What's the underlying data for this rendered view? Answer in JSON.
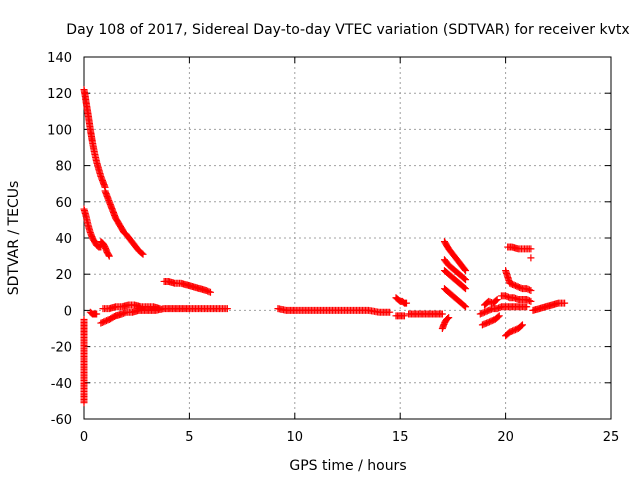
{
  "chart_data": {
    "type": "scatter",
    "title": "Day 108 of 2017, Sidereal Day-to-day VTEC variation (SDTVAR) for receiver kvtx",
    "xlabel": "GPS time / hours",
    "ylabel": "SDTVAR / TECUs",
    "xlim": [
      0,
      25
    ],
    "ylim": [
      -60,
      140
    ],
    "xticks": [
      0,
      5,
      10,
      15,
      20,
      25
    ],
    "yticks": [
      -60,
      -40,
      -20,
      0,
      20,
      40,
      60,
      80,
      100,
      120,
      140
    ],
    "xtick_labels": [
      "0",
      "5",
      "10",
      "15",
      "20",
      "25"
    ],
    "ytick_labels": [
      "-60",
      "-40",
      "-20",
      "0",
      "20",
      "40",
      "60",
      "80",
      "100",
      "120",
      "140"
    ],
    "grid": true,
    "marker": "+",
    "color": "#ff0000",
    "series": [
      {
        "name": "track-1",
        "x": [
          0.0,
          0.05,
          0.1,
          0.2,
          0.3,
          0.4,
          0.5,
          0.6,
          0.7,
          0.8,
          0.9,
          1.0
        ],
        "y": [
          122,
          119,
          115,
          108,
          100,
          93,
          87,
          82,
          78,
          74,
          71,
          68
        ]
      },
      {
        "name": "track-2",
        "x": [
          1.0,
          1.1,
          1.2,
          1.3,
          1.4,
          1.5,
          1.6,
          1.7,
          1.8,
          1.9,
          2.0,
          2.2,
          2.4,
          2.6,
          2.8
        ],
        "y": [
          66,
          63,
          60,
          57,
          54,
          51,
          49,
          47,
          45,
          43,
          42,
          39,
          36,
          33,
          31
        ]
      },
      {
        "name": "track-3",
        "x": [
          0.0,
          0.1,
          0.2,
          0.3,
          0.4,
          0.5,
          0.6,
          0.7,
          0.8
        ],
        "y": [
          56,
          52,
          47,
          43,
          40,
          38,
          36,
          35,
          35
        ]
      },
      {
        "name": "track-4",
        "x": [
          0.8,
          0.9,
          1.0,
          1.1,
          1.2
        ],
        "y": [
          38,
          37,
          35,
          32,
          30
        ]
      },
      {
        "name": "track-5",
        "x": [
          0.0,
          0.0,
          0.0
        ],
        "y": [
          -51,
          -15,
          -5
        ]
      },
      {
        "name": "track-6",
        "x": [
          0.3,
          0.4,
          0.5,
          0.6
        ],
        "y": [
          -1,
          -2,
          -2,
          -2
        ]
      },
      {
        "name": "track-7",
        "x": [
          0.8,
          1.0,
          1.2,
          1.5,
          1.8,
          2.0,
          2.3,
          2.6,
          3.0,
          3.4,
          3.8,
          4.2,
          4.6,
          5.0,
          5.5,
          6.0,
          6.5,
          6.8
        ],
        "y": [
          -7,
          -6,
          -5,
          -3,
          -2,
          -1,
          -1,
          0,
          0,
          0,
          1,
          1,
          1,
          1,
          1,
          1,
          1,
          1
        ]
      },
      {
        "name": "track-8",
        "x": [
          0.9,
          1.2,
          1.5,
          1.8,
          2.1,
          2.4,
          2.7,
          3.0,
          3.3,
          3.6
        ],
        "y": [
          1,
          1,
          2,
          2,
          3,
          3,
          2,
          2,
          2,
          1
        ]
      },
      {
        "name": "track-9",
        "x": [
          3.8,
          4.0,
          4.3,
          4.6,
          4.9,
          5.2,
          5.5,
          5.8,
          6.0
        ],
        "y": [
          16,
          16,
          15,
          15,
          14,
          13,
          12,
          11,
          10
        ]
      },
      {
        "name": "track-10",
        "x": [
          9.2,
          9.6,
          10.0,
          10.5,
          11.0,
          11.5,
          12.0,
          12.5,
          13.0,
          13.5,
          14.0,
          14.5
        ],
        "y": [
          1,
          0,
          0,
          0,
          0,
          0,
          0,
          0,
          0,
          0,
          -1,
          -1
        ]
      },
      {
        "name": "track-11",
        "x": [
          14.8,
          14.9,
          15.0,
          15.1,
          15.2,
          15.3
        ],
        "y": [
          7,
          6,
          5,
          5,
          4,
          4
        ]
      },
      {
        "name": "track-12",
        "x": [
          14.8,
          15.0,
          15.2
        ],
        "y": [
          -3,
          -3,
          -3
        ]
      },
      {
        "name": "track-13",
        "x": [
          15.4,
          15.8,
          16.2,
          16.6,
          17.0
        ],
        "y": [
          -2,
          -2,
          -2,
          -2,
          -2
        ]
      },
      {
        "name": "track-14",
        "x": [
          17.0,
          17.1,
          17.2,
          17.3
        ],
        "y": [
          -10,
          -7,
          -5,
          -4
        ]
      },
      {
        "name": "track-15",
        "x": [
          17.1,
          17.3,
          17.5,
          17.7,
          17.9,
          18.1
        ],
        "y": [
          38,
          34,
          31,
          28,
          25,
          22
        ]
      },
      {
        "name": "track-16",
        "x": [
          17.1,
          17.3,
          17.5,
          17.7,
          17.9,
          18.1
        ],
        "y": [
          28,
          25,
          23,
          21,
          19,
          17
        ]
      },
      {
        "name": "track-17",
        "x": [
          17.1,
          17.3,
          17.5,
          17.7,
          17.9,
          18.1
        ],
        "y": [
          22,
          20,
          18,
          16,
          14,
          12
        ]
      },
      {
        "name": "track-18",
        "x": [
          17.1,
          17.3,
          17.5,
          17.7,
          17.9,
          18.1
        ],
        "y": [
          12,
          10,
          8,
          6,
          4,
          2
        ]
      },
      {
        "name": "track-19",
        "x": [
          18.8,
          19.0,
          19.2,
          19.4,
          19.6,
          19.8,
          20.0,
          20.2,
          20.4,
          20.6,
          20.8,
          21.0
        ],
        "y": [
          -2,
          -1,
          0,
          1,
          1,
          2,
          2,
          2,
          2,
          2,
          2,
          2
        ]
      },
      {
        "name": "track-20",
        "x": [
          18.9,
          19.1,
          19.3,
          19.5,
          19.7
        ],
        "y": [
          -8,
          -7,
          -6,
          -5,
          -3
        ]
      },
      {
        "name": "track-21",
        "x": [
          19.0,
          19.2,
          19.4,
          19.6
        ],
        "y": [
          3,
          5,
          4,
          6
        ]
      },
      {
        "name": "track-22",
        "x": [
          19.8,
          20.0,
          20.2,
          20.4,
          20.6,
          20.8,
          21.0,
          21.2
        ],
        "y": [
          8,
          8,
          7,
          7,
          6,
          6,
          6,
          5
        ]
      },
      {
        "name": "track-23",
        "x": [
          20.0,
          20.2,
          20.4,
          20.6,
          20.8
        ],
        "y": [
          -14,
          -12,
          -11,
          -10,
          -8
        ]
      },
      {
        "name": "track-24",
        "x": [
          20.1,
          20.3,
          20.6,
          20.9,
          21.2
        ],
        "y": [
          35,
          35,
          34,
          34,
          34
        ]
      },
      {
        "name": "track-25",
        "x": [
          20.0,
          20.2,
          20.4,
          20.6,
          20.8,
          21.0,
          21.2
        ],
        "y": [
          22,
          15,
          14,
          13,
          12,
          12,
          11
        ]
      },
      {
        "name": "track-26",
        "x": [
          21.2
        ],
        "y": [
          29
        ]
      },
      {
        "name": "track-27",
        "x": [
          21.3,
          21.6,
          21.9,
          22.2,
          22.5,
          22.8
        ],
        "y": [
          0,
          1,
          2,
          3,
          4,
          4
        ]
      }
    ]
  }
}
